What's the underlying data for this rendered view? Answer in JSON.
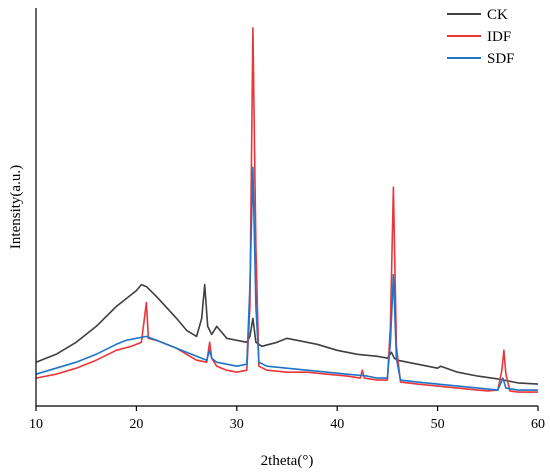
{
  "chart_data": {
    "type": "line",
    "title": "",
    "xlabel": "2theta(°)",
    "ylabel": "Intensity(a.u.)",
    "xlim": [
      10,
      60
    ],
    "x_ticks": [
      10,
      20,
      30,
      40,
      50,
      60
    ],
    "ylim": [
      0,
      100
    ],
    "grid": false,
    "legend": "top-right",
    "series": [
      {
        "name": "CK",
        "color": "#404040",
        "points": [
          [
            10,
            11
          ],
          [
            12,
            13
          ],
          [
            14,
            16
          ],
          [
            16,
            20
          ],
          [
            18,
            25
          ],
          [
            19,
            27
          ],
          [
            20,
            29
          ],
          [
            20.5,
            30.5
          ],
          [
            21,
            30
          ],
          [
            22,
            27.5
          ],
          [
            24,
            22
          ],
          [
            25,
            19
          ],
          [
            26,
            17.5
          ],
          [
            26.5,
            22
          ],
          [
            26.8,
            30.5
          ],
          [
            27.1,
            20
          ],
          [
            27.5,
            18
          ],
          [
            28,
            20
          ],
          [
            29,
            17
          ],
          [
            30,
            16.5
          ],
          [
            31,
            16
          ],
          [
            31.3,
            17.5
          ],
          [
            31.6,
            22
          ],
          [
            31.9,
            16
          ],
          [
            32.5,
            15
          ],
          [
            34,
            16
          ],
          [
            35,
            17
          ],
          [
            36,
            16.5
          ],
          [
            38,
            15.5
          ],
          [
            40,
            14
          ],
          [
            42,
            13
          ],
          [
            44,
            12.5
          ],
          [
            45,
            12
          ],
          [
            45.4,
            13.5
          ],
          [
            45.7,
            12
          ],
          [
            46,
            11.5
          ],
          [
            48,
            10.5
          ],
          [
            50,
            9.5
          ],
          [
            50.3,
            10
          ],
          [
            52,
            8.5
          ],
          [
            54,
            7.5
          ],
          [
            56,
            6.8
          ],
          [
            58,
            5.8
          ],
          [
            60,
            5.5
          ]
        ]
      },
      {
        "name": "IDF",
        "color": "#e8363a",
        "points": [
          [
            10,
            7
          ],
          [
            12,
            8
          ],
          [
            14,
            9.5
          ],
          [
            16,
            11.5
          ],
          [
            18,
            14
          ],
          [
            19.5,
            15
          ],
          [
            20.5,
            16
          ],
          [
            20.8,
            22
          ],
          [
            21,
            26
          ],
          [
            21.2,
            17
          ],
          [
            22,
            16.5
          ],
          [
            23,
            15.5
          ],
          [
            24,
            14.5
          ],
          [
            25,
            13
          ],
          [
            26,
            11.5
          ],
          [
            27,
            11
          ],
          [
            27.3,
            16
          ],
          [
            27.5,
            12
          ],
          [
            28,
            10
          ],
          [
            29,
            9
          ],
          [
            30,
            8.5
          ],
          [
            31,
            9
          ],
          [
            31.3,
            25
          ],
          [
            31.6,
            95
          ],
          [
            31.9,
            40
          ],
          [
            32.2,
            10
          ],
          [
            33,
            9
          ],
          [
            35,
            8.5
          ],
          [
            37,
            8.5
          ],
          [
            39,
            8
          ],
          [
            41,
            7.5
          ],
          [
            42.3,
            7
          ],
          [
            42.5,
            9
          ],
          [
            42.7,
            7
          ],
          [
            44,
            6.5
          ],
          [
            45,
            6.5
          ],
          [
            45.3,
            20
          ],
          [
            45.6,
            55
          ],
          [
            45.9,
            15
          ],
          [
            46.3,
            6
          ],
          [
            48,
            5.5
          ],
          [
            50,
            5
          ],
          [
            52,
            4.5
          ],
          [
            54,
            4
          ],
          [
            55,
            3.8
          ],
          [
            56,
            4
          ],
          [
            56.4,
            9
          ],
          [
            56.6,
            14
          ],
          [
            56.8,
            8
          ],
          [
            57.2,
            3.8
          ],
          [
            58,
            3.5
          ],
          [
            60,
            3.5
          ]
        ]
      },
      {
        "name": "SDF",
        "color": "#1f74c8",
        "points": [
          [
            10,
            8
          ],
          [
            12,
            9.5
          ],
          [
            14,
            11
          ],
          [
            16,
            13
          ],
          [
            18,
            15.5
          ],
          [
            19,
            16.5
          ],
          [
            20,
            17
          ],
          [
            21,
            17.5
          ],
          [
            22,
            16.5
          ],
          [
            23,
            15.5
          ],
          [
            24,
            14.5
          ],
          [
            25,
            13.5
          ],
          [
            26,
            12.5
          ],
          [
            27,
            11.5
          ],
          [
            27.3,
            14
          ],
          [
            27.5,
            12
          ],
          [
            28,
            11
          ],
          [
            29,
            10.5
          ],
          [
            30,
            10
          ],
          [
            31,
            10.5
          ],
          [
            31.3,
            30
          ],
          [
            31.6,
            60
          ],
          [
            31.9,
            25
          ],
          [
            32.2,
            11
          ],
          [
            33,
            10
          ],
          [
            35,
            9.5
          ],
          [
            37,
            9
          ],
          [
            39,
            8.5
          ],
          [
            41,
            8
          ],
          [
            43,
            7.5
          ],
          [
            44,
            7
          ],
          [
            45,
            7
          ],
          [
            45.3,
            16
          ],
          [
            45.6,
            33
          ],
          [
            45.9,
            12
          ],
          [
            46.3,
            6.5
          ],
          [
            48,
            6
          ],
          [
            50,
            5.5
          ],
          [
            52,
            5
          ],
          [
            54,
            4.5
          ],
          [
            56,
            4
          ],
          [
            56.5,
            7
          ],
          [
            56.8,
            4.5
          ],
          [
            58,
            4
          ],
          [
            60,
            4
          ]
        ]
      }
    ]
  }
}
